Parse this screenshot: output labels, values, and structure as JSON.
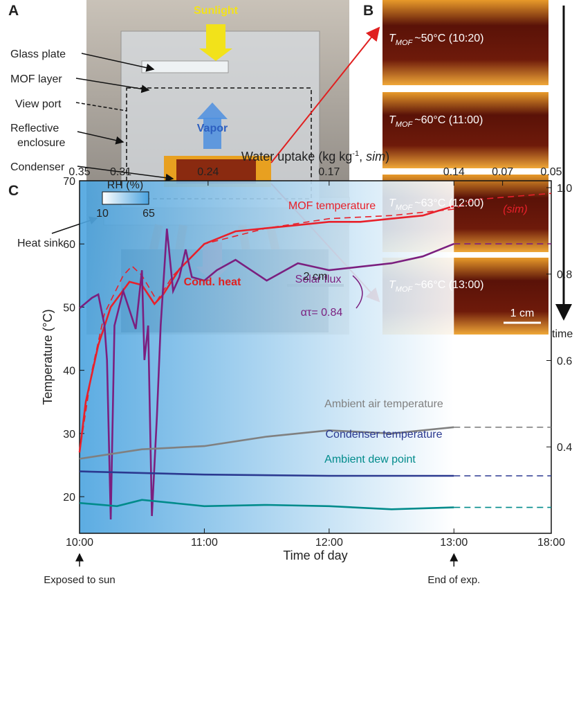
{
  "panel_labels": [
    "A",
    "B",
    "C"
  ],
  "photo": {
    "callouts": [
      [
        "Glass plate"
      ],
      [
        "MOF layer"
      ],
      [
        "View port"
      ],
      [
        "Reflective",
        "enclosure"
      ],
      [
        "Condenser"
      ],
      [
        "Heat sink"
      ]
    ],
    "overlays": [
      "Sunlight",
      "Vapor",
      "Cond. heat"
    ],
    "scale_bar": "2 cm"
  },
  "frames": {
    "symbol": "T",
    "subscript": "MOF",
    "captions": [
      "~50°C (10:20)",
      "~60°C (11:00)",
      "~63°C (12:00)",
      "~66°C (13:00)"
    ],
    "scale_bar": "1 cm",
    "arrow_label": "time"
  },
  "chart_data": {
    "type": "line",
    "x_label": "Time of day",
    "y_label": "Temperature (°C)",
    "xlim": [
      10,
      18
    ],
    "xticks": [
      {
        "value": 10,
        "label": "10:00"
      },
      {
        "value": 11,
        "label": "11:00"
      },
      {
        "value": 12,
        "label": "12:00"
      },
      {
        "value": 13,
        "label": "13:00"
      },
      {
        "value": 18,
        "label": "18:00"
      }
    ],
    "ylim": [
      14.2,
      70
    ],
    "yticks": [
      20,
      30,
      40,
      50,
      60,
      70
    ],
    "y2lim": [
      0.2,
      1.016
    ],
    "y2ticks": [
      0.4,
      0.6,
      0.8,
      {
        "value": 1,
        "label": "1.0"
      }
    ],
    "x2": {
      "label": [
        "Water uptake (kg kg",
        "-1",
        ", ",
        "sim",
        ")"
      ],
      "ticks": [
        0.35,
        0.31,
        0.24,
        0.17,
        0.14,
        0.07,
        0.05
      ],
      "at": [
        10,
        10.33,
        11.03,
        12.0,
        13,
        15.5,
        18
      ]
    },
    "series": [
      {
        "name": "MOF temperature",
        "color": "#e8202a",
        "x": [
          10,
          10.05,
          10.15,
          10.25,
          10.4,
          10.5,
          10.6,
          10.67,
          10.8,
          11,
          11.25,
          11.5,
          11.75,
          12,
          12.25,
          12.5,
          12.75,
          13
        ],
        "values": [
          27,
          35,
          44,
          50,
          54,
          53.5,
          50.5,
          52,
          56,
          60,
          62,
          62.5,
          63,
          63.5,
          63.5,
          64,
          64.5,
          66
        ]
      },
      {
        "name": "(sim)",
        "color": "#e8202a",
        "dash": true,
        "x": [
          10,
          10.1,
          10.2,
          10.35,
          10.42,
          10.5,
          10.62,
          10.75,
          11,
          11.5,
          12,
          12.5,
          13,
          14,
          16,
          18
        ],
        "values": [
          27,
          40,
          49,
          55,
          56.5,
          55,
          51,
          55,
          60,
          62.5,
          64,
          64.5,
          65.5,
          67,
          67.5,
          68
        ]
      },
      {
        "name": "Solar flux",
        "color": "#7b1f7f",
        "axis": "y2",
        "x": [
          10,
          10.1,
          10.15,
          10.2,
          10.22,
          10.25,
          10.28,
          10.35,
          10.45,
          10.5,
          10.52,
          10.55,
          10.58,
          10.62,
          10.65,
          10.7,
          10.75,
          10.8,
          10.85,
          10.9,
          11,
          11.1,
          11.25,
          11.5,
          11.75,
          12,
          12.25,
          12.5,
          12.75,
          13
        ],
        "values": [
          0.721,
          0.745,
          0.753,
          0.681,
          0.601,
          0.232,
          0.681,
          0.761,
          0.673,
          0.809,
          0.601,
          0.681,
          0.24,
          0.472,
          0.681,
          0.905,
          0.761,
          0.793,
          0.857,
          0.793,
          0.785,
          0.809,
          0.833,
          0.785,
          0.825,
          0.809,
          0.817,
          0.825,
          0.841,
          0.87
        ]
      },
      {
        "color": "#7b1f7f",
        "axis": "y2",
        "dash": true,
        "x": [
          13,
          18
        ],
        "values": [
          0.87,
          0.87
        ]
      },
      {
        "name": "Ambient air temperature",
        "color": "#808080",
        "x": [
          10,
          10.5,
          11,
          11.5,
          12,
          12.5,
          13
        ],
        "values": [
          26,
          27.5,
          28,
          29.5,
          30.5,
          30,
          31
        ]
      },
      {
        "color": "#808080",
        "dash": true,
        "x": [
          13,
          18
        ],
        "values": [
          31,
          31
        ]
      },
      {
        "name": "Condenser temperature",
        "color": "#2b3990",
        "x": [
          10,
          11,
          12,
          13
        ],
        "values": [
          24,
          23.5,
          23.3,
          23.3
        ]
      },
      {
        "color": "#2b3990",
        "dash": true,
        "x": [
          13,
          18
        ],
        "values": [
          23.3,
          23.3
        ]
      },
      {
        "name": "Ambient dew point",
        "color": "#008b8b",
        "x": [
          10,
          10.3,
          10.5,
          11,
          11.5,
          12,
          12.5,
          13
        ],
        "values": [
          19,
          18.5,
          19.5,
          18.5,
          18.7,
          18.5,
          18,
          18.3
        ]
      },
      {
        "color": "#008b8b",
        "dash": true,
        "x": [
          13,
          18
        ],
        "values": [
          18.3,
          18.3
        ]
      }
    ],
    "annotations": {
      "alpha_tau": "ατ= 0.84",
      "start": "Exposed to sun",
      "end": "End of exp."
    },
    "rh": {
      "label": "RH (%)",
      "min": 10,
      "max": 65
    }
  }
}
